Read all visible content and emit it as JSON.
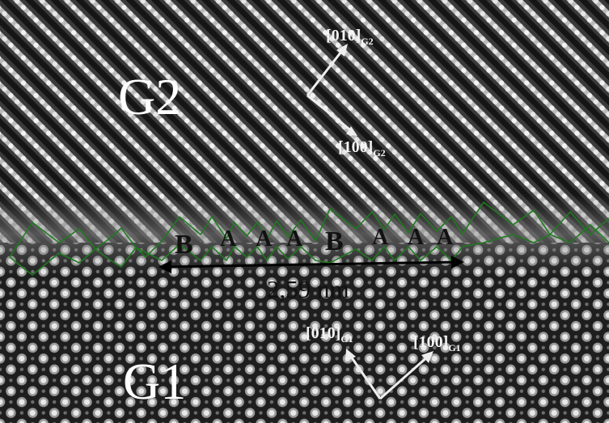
{
  "image": {
    "width": 753,
    "height": 523,
    "description": "HRTEM micrograph of grain boundary between G2 (top, diagonal fringes) and G1 (bottom, square lattice)"
  },
  "grains": {
    "top": "G2",
    "bottom": "G1"
  },
  "directions": {
    "g2_010": {
      "index": "[010]",
      "grain": "G2"
    },
    "g2_100": {
      "index": "[100]",
      "grain": "G2"
    },
    "g1_010": {
      "index": "[010]",
      "grain": "G1"
    },
    "g1_100": {
      "index": "[100]",
      "grain": "G1"
    }
  },
  "stacking_sequence": [
    "B",
    "A",
    "A",
    "A",
    "B",
    "A",
    "A",
    "A"
  ],
  "period_label": "2,59 nm",
  "colors": {
    "boundary_outline": "#1f7a1f",
    "arrows_white": "#eeeeee",
    "scale_arrow": "#000000",
    "text_dark": "#111111"
  }
}
